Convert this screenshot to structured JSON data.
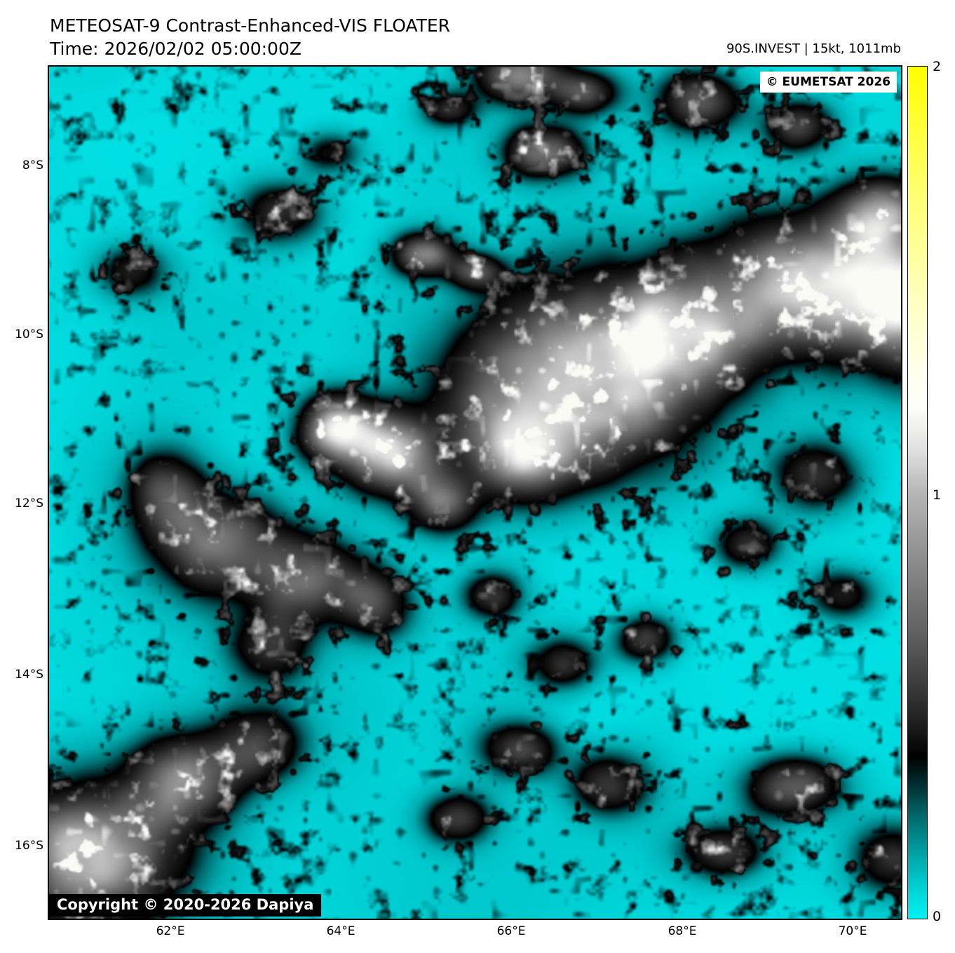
{
  "header": {
    "title": "METEOSAT-9 Contrast-Enhanced-VIS FLOATER",
    "time_label": "Time: 2026/02/02 05:00:00Z",
    "storm_info": "90S.INVEST | 15kt, 1011mb"
  },
  "map_overlays": {
    "eumetsat_badge": "© EUMETSAT 2026",
    "copyright_badge": "Copyright © 2020-2026 Dapiya"
  },
  "axes": {
    "x_ticks": [
      "62°E",
      "64°E",
      "66°E",
      "68°E",
      "70°E"
    ],
    "y_ticks": [
      "8°S",
      "10°S",
      "12°S",
      "14°S",
      "16°S"
    ]
  },
  "colorbar": {
    "ticks": {
      "top": "2",
      "middle": "1",
      "bottom": "0"
    },
    "range_min": 0,
    "range_max": 2,
    "gradient_bottom_to_top": [
      "#00f2f6",
      "#00a9ad",
      "#000000",
      "#585858",
      "#b6b6b6",
      "#ffffff",
      "#ffffc2",
      "#ffff00"
    ]
  },
  "colors": {
    "ocean_cyan": "#00dde1",
    "cloud_white": "#ffffff",
    "cloud_edge_black": "#000000",
    "frame_black": "#000000"
  },
  "chart_data": {
    "type": "heatmap",
    "title": "METEOSAT-9 Contrast-Enhanced-VIS FLOATER",
    "subtitle": "Time: 2026/02/02 05:00:00Z",
    "annotation": "90S.INVEST | 15kt, 1011mb",
    "xlabel": "",
    "ylabel": "",
    "x_tick_labels": [
      "62°E",
      "64°E",
      "66°E",
      "68°E",
      "70°E"
    ],
    "y_tick_labels": [
      "8°S",
      "10°S",
      "12°S",
      "14°S",
      "16°S"
    ],
    "x_range_deg_e": [
      60.6,
      70.6
    ],
    "y_range_deg_s": [
      6.8,
      16.8
    ],
    "colorbar": {
      "min": 0,
      "max": 2,
      "tick_labels": [
        "0",
        "1",
        "2"
      ],
      "position": "right"
    },
    "grid": false,
    "legend": false,
    "content_summary": "Contrast-enhanced visible satellite image: bright cyan ocean background with scattered small black/dark-gray low clouds; large bright white convective cloud mass centered near 66.5E 10.5S extending to the northeast image edge; smaller white cells near 64.5E 11.5S; broad gray cloud fields over the lower-left quadrant; bright white mass in the southwest corner near 61E 16S."
  }
}
